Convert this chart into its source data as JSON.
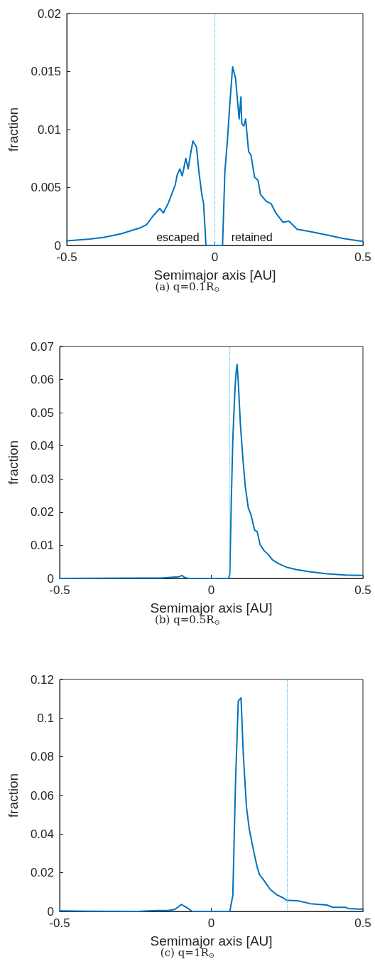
{
  "chart_data": [
    {
      "type": "line",
      "xlabel": "Semimajor axis [AU]",
      "ylabel": "fraction",
      "annotations": [
        "(a) q=0.1R$_{⊙}$",
        "escaped",
        "retained"
      ],
      "x": [
        -0.5,
        -0.422,
        -0.374,
        -0.318,
        -0.254,
        -0.23,
        -0.21,
        -0.186,
        -0.174,
        -0.158,
        -0.146,
        -0.134,
        -0.127,
        -0.118,
        -0.11,
        -0.098,
        -0.09,
        -0.082,
        -0.074,
        -0.062,
        -0.054,
        -0.044,
        -0.038,
        -0.03,
        0.026,
        0.034,
        0.042,
        0.05,
        0.06,
        0.07,
        0.082,
        0.088,
        0.091,
        0.098,
        0.104,
        0.114,
        0.122,
        0.134,
        0.146,
        0.154,
        0.174,
        0.19,
        0.206,
        0.23,
        0.25,
        0.278,
        0.322,
        0.378,
        0.434,
        0.5
      ],
      "series": [
        {
          "color": "#0072bd",
          "values": [
            0.0004,
            0.00055,
            0.0007,
            0.001,
            0.0015,
            0.0018,
            0.0025,
            0.0032,
            0.0028,
            0.0036,
            0.0044,
            0.0052,
            0.0061,
            0.0066,
            0.006,
            0.0075,
            0.0066,
            0.0079,
            0.009,
            0.0085,
            0.0064,
            0.0044,
            0.0036,
            0,
            0,
            0.0064,
            0.0089,
            0.012,
            0.0154,
            0.0144,
            0.0109,
            0.0128,
            0.0105,
            0.0103,
            0.0109,
            0.0081,
            0.0078,
            0.0059,
            0.0056,
            0.0044,
            0.0038,
            0.0036,
            0.0028,
            0.002,
            0.0021,
            0.0014,
            0.0012,
            0.0009,
            0.0006,
            0.00035
          ]
        }
      ],
      "xlim": [
        -0.5,
        0.5
      ],
      "xticks": [
        -0.5,
        0,
        0.5
      ],
      "ylim": [
        0,
        0.02
      ],
      "yticks": [
        0,
        0.005,
        0.01,
        0.015,
        0.02
      ],
      "grid": false,
      "marker": "none",
      "ref_lines": [
        {
          "axis": "x",
          "value": 0,
          "color": "#4dbeee",
          "line_style": "dotted"
        }
      ]
    },
    {
      "type": "line",
      "xlabel": "Semimajor axis [AU]",
      "ylabel": "fraction",
      "annotations": [
        "(b) q=0.5R$_{⊙}$"
      ],
      "x": [
        -0.5,
        -0.244,
        -0.166,
        -0.127,
        -0.107,
        -0.097,
        -0.088,
        -0.076,
        0.057,
        0.061,
        0.066,
        0.071,
        0.077,
        0.081,
        0.085,
        0.089,
        0.096,
        0.104,
        0.112,
        0.122,
        0.131,
        0.143,
        0.151,
        0.161,
        0.174,
        0.19,
        0.202,
        0.221,
        0.248,
        0.28,
        0.319,
        0.381,
        0.444,
        0.5
      ],
      "series": [
        {
          "color": "#0072bd",
          "values": [
            0,
            0.0001,
            0.0001,
            0.0004,
            0.0005,
            0.0009,
            0.0003,
            0,
            0,
            0.0013,
            0.0235,
            0.042,
            0.055,
            0.0614,
            0.0646,
            0.0593,
            0.0464,
            0.0364,
            0.0278,
            0.0213,
            0.0192,
            0.0145,
            0.0142,
            0.0102,
            0.0084,
            0.007,
            0.0056,
            0.0045,
            0.0034,
            0.0027,
            0.0021,
            0.0014,
            0.001,
            0.0009
          ]
        }
      ],
      "xlim": [
        -0.5,
        0.5
      ],
      "xticks": [
        -0.5,
        0,
        0.5
      ],
      "ylim": [
        0,
        0.07
      ],
      "yticks": [
        0,
        0.01,
        0.02,
        0.03,
        0.04,
        0.05,
        0.06,
        0.07
      ],
      "grid": false,
      "marker": "none",
      "ref_lines": [
        {
          "axis": "x",
          "value": 0.06,
          "color": "#4dbeee",
          "line_style": "dotted"
        }
      ]
    },
    {
      "type": "line",
      "xlabel": "Semimajor axis [AU]",
      "ylabel": "fraction",
      "annotations": [
        "(c) q=1R$_{⊙}$"
      ],
      "x": [
        -0.5,
        -0.4,
        -0.244,
        -0.181,
        -0.142,
        -0.119,
        -0.099,
        -0.08,
        -0.062,
        0.061,
        0.071,
        0.08,
        0.089,
        0.098,
        0.106,
        0.116,
        0.125,
        0.139,
        0.151,
        0.159,
        0.17,
        0.194,
        0.217,
        0.237,
        0.248,
        0.288,
        0.327,
        0.381,
        0.401,
        0.444,
        0.452,
        0.5
      ],
      "series": [
        {
          "color": "#0072bd",
          "values": [
            0.0003,
            0.0001,
            0,
            0.0005,
            0.0005,
            0.0011,
            0.0036,
            0.0019,
            0,
            0,
            0.0083,
            0.0675,
            0.1088,
            0.1105,
            0.0799,
            0.054,
            0.0428,
            0.0317,
            0.0231,
            0.019,
            0.0169,
            0.0114,
            0.0085,
            0.007,
            0.0058,
            0.0054,
            0.004,
            0.0033,
            0.0021,
            0.0021,
            0.0015,
            0.0011
          ]
        }
      ],
      "xlim": [
        -0.5,
        0.5
      ],
      "xticks": [
        -0.5,
        0,
        0.5
      ],
      "ylim": [
        0,
        0.12
      ],
      "yticks": [
        0,
        0.02,
        0.04,
        0.06,
        0.08,
        0.1,
        0.12
      ],
      "grid": false,
      "marker": "none",
      "ref_lines": [
        {
          "axis": "x",
          "value": 0.25,
          "color": "#4dbeee",
          "line_style": "dotted"
        }
      ]
    }
  ]
}
